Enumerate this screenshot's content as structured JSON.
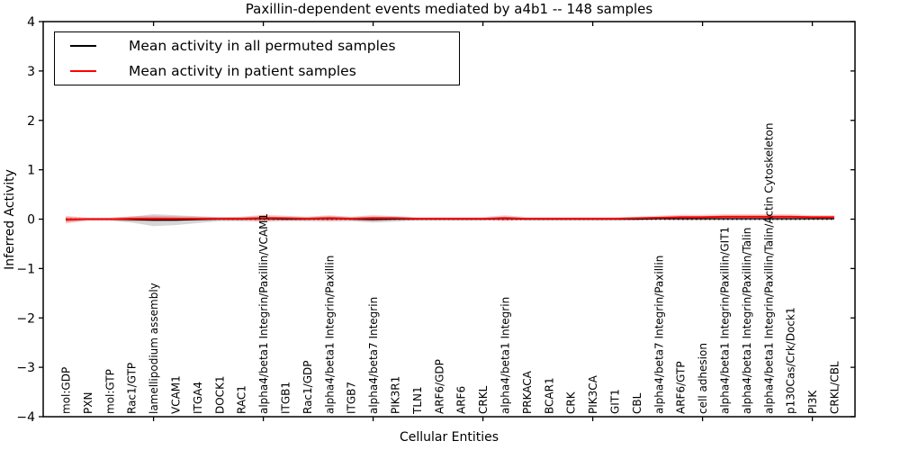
{
  "title": "Paxillin-dependent events mediated by a4b1 -- 148 samples",
  "axes": {
    "xlabel": "Cellular Entities",
    "ylabel": "Inferred Activity",
    "ytick_labels": [
      "4",
      "3",
      "2",
      "1",
      "0",
      "−1",
      "−2",
      "−3",
      "−4"
    ],
    "ytick_values": [
      4,
      3,
      2,
      1,
      0,
      -1,
      -2,
      -3,
      -4
    ]
  },
  "legend": {
    "items": [
      {
        "label": "Mean activity in all permuted samples",
        "color": "#000000"
      },
      {
        "label": "Mean activity in patient samples",
        "color": "#ff0000"
      }
    ]
  },
  "colors": {
    "permuted_line": "#000000",
    "patient_line": "#ff0000",
    "permuted_band": "rgba(0,0,0,0.16)",
    "patient_band": "rgba(255,0,0,0.20)",
    "patient_band_inner": "rgba(255,0,0,0.30)",
    "zero_line": "#000000"
  },
  "chart_data": {
    "type": "line",
    "title": "Paxillin-dependent events mediated by a4b1 -- 148 samples",
    "xlabel": "Cellular Entities",
    "ylabel": "Inferred Activity",
    "ylim": [
      -4,
      4
    ],
    "grid": false,
    "legend_position": "upper left",
    "zero_line": {
      "style": "dotted",
      "color": "#000000",
      "y": 0
    },
    "major_tick_indices": [
      4,
      9,
      14,
      19,
      24,
      29,
      34
    ],
    "categories": [
      "mol:GDP",
      "PXN",
      "mol:GTP",
      "Rac1/GTP",
      "lamellipodium assembly",
      "VCAM1",
      "ITGA4",
      "DOCK1",
      "RAC1",
      "alpha4/beta1 Integrin/Paxillin/VCAM1",
      "ITGB1",
      "Rac1/GDP",
      "alpha4/beta1 Integrin/Paxillin",
      "ITGB7",
      "alpha4/beta7 Integrin",
      "PIK3R1",
      "TLN1",
      "ARF6/GDP",
      "ARF6",
      "CRKL",
      "alpha4/beta1 Integrin",
      "PRKACA",
      "BCAR1",
      "CRK",
      "PIK3CA",
      "GIT1",
      "CBL",
      "alpha4/beta7 Integrin/Paxillin",
      "ARF6/GTP",
      "cell adhesion",
      "alpha4/beta1 Integrin/Paxillin/GIT1",
      "alpha4/beta1 Integrin/Paxillin/Talin",
      "alpha4/beta1 Integrin/Paxillin/Talin/Actin Cytoskeleton",
      "p130Cas/Crk/Dock1",
      "PI3K",
      "CRKL/CBL"
    ],
    "series": [
      {
        "name": "Mean activity in all permuted samples",
        "color": "#000000",
        "values": [
          -0.01,
          0.0,
          0.0,
          -0.01,
          -0.02,
          -0.02,
          -0.01,
          0.0,
          0.0,
          0.01,
          0.0,
          0.0,
          0.01,
          0.0,
          -0.01,
          0.0,
          0.0,
          0.0,
          0.0,
          0.0,
          0.01,
          0.0,
          0.0,
          0.0,
          0.0,
          0.0,
          0.0,
          0.01,
          0.01,
          0.01,
          0.01,
          0.01,
          0.01,
          0.01,
          0.01,
          0.01
        ],
        "band_halfwidth": [
          0.05,
          0.03,
          0.03,
          0.06,
          0.12,
          0.1,
          0.07,
          0.04,
          0.04,
          0.05,
          0.04,
          0.04,
          0.05,
          0.04,
          0.06,
          0.05,
          0.03,
          0.03,
          0.03,
          0.03,
          0.04,
          0.03,
          0.03,
          0.03,
          0.03,
          0.03,
          0.03,
          0.03,
          0.04,
          0.04,
          0.04,
          0.04,
          0.04,
          0.04,
          0.03,
          0.03
        ]
      },
      {
        "name": "Mean activity in patient samples",
        "color": "#ff0000",
        "values": [
          -0.01,
          0.0,
          0.0,
          0.01,
          0.01,
          0.01,
          0.01,
          0.01,
          0.01,
          0.02,
          0.02,
          0.01,
          0.02,
          0.01,
          0.02,
          0.02,
          0.01,
          0.01,
          0.01,
          0.01,
          0.02,
          0.01,
          0.01,
          0.01,
          0.01,
          0.01,
          0.02,
          0.03,
          0.04,
          0.04,
          0.05,
          0.05,
          0.05,
          0.05,
          0.04,
          0.04
        ],
        "band_halfwidth": [
          0.08,
          0.03,
          0.03,
          0.05,
          0.06,
          0.05,
          0.04,
          0.03,
          0.04,
          0.07,
          0.05,
          0.04,
          0.06,
          0.04,
          0.06,
          0.04,
          0.03,
          0.03,
          0.03,
          0.03,
          0.06,
          0.03,
          0.03,
          0.03,
          0.03,
          0.03,
          0.03,
          0.04,
          0.05,
          0.05,
          0.05,
          0.05,
          0.05,
          0.05,
          0.04,
          0.04
        ]
      }
    ]
  }
}
